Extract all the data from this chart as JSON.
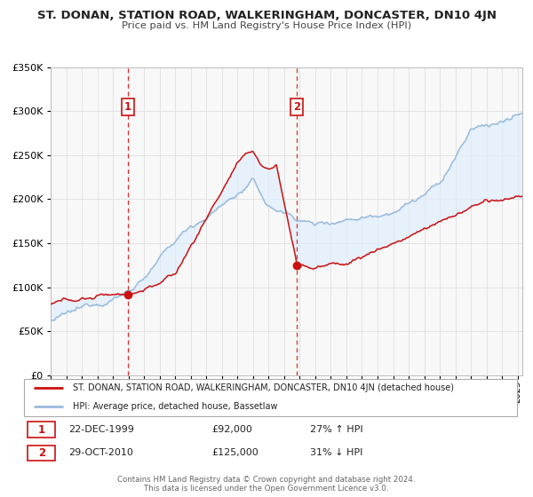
{
  "title": "ST. DONAN, STATION ROAD, WALKERINGHAM, DONCASTER, DN10 4JN",
  "subtitle": "Price paid vs. HM Land Registry's House Price Index (HPI)",
  "ylim": [
    0,
    350000
  ],
  "yticks": [
    0,
    50000,
    100000,
    150000,
    200000,
    250000,
    300000,
    350000
  ],
  "ytick_labels": [
    "£0",
    "£50K",
    "£100K",
    "£150K",
    "£200K",
    "£250K",
    "£300K",
    "£350K"
  ],
  "background_color": "#ffffff",
  "grid_color": "#e0e0e0",
  "hpi_line_color": "#99bbdd",
  "price_line_color": "#cc1111",
  "shade_color": "#ddeeff",
  "vline_color": "#cc1111",
  "point1_date": 1999.97,
  "point1_value": 92000,
  "point2_date": 2010.83,
  "point2_value": 125000,
  "legend_line1": "ST. DONAN, STATION ROAD, WALKERINGHAM, DONCASTER, DN10 4JN (detached house)",
  "legend_line2": "HPI: Average price, detached house, Bassetlaw",
  "point1_text": "22-DEC-1999",
  "point1_price": "£92,000",
  "point1_hpi": "27% ↑ HPI",
  "point2_text": "29-OCT-2010",
  "point2_price": "£125,000",
  "point2_hpi": "31% ↓ HPI",
  "footer1": "Contains HM Land Registry data © Crown copyright and database right 2024.",
  "footer2": "This data is licensed under the Open Government Licence v3.0.",
  "xmin": 1995.0,
  "xmax": 2025.3
}
